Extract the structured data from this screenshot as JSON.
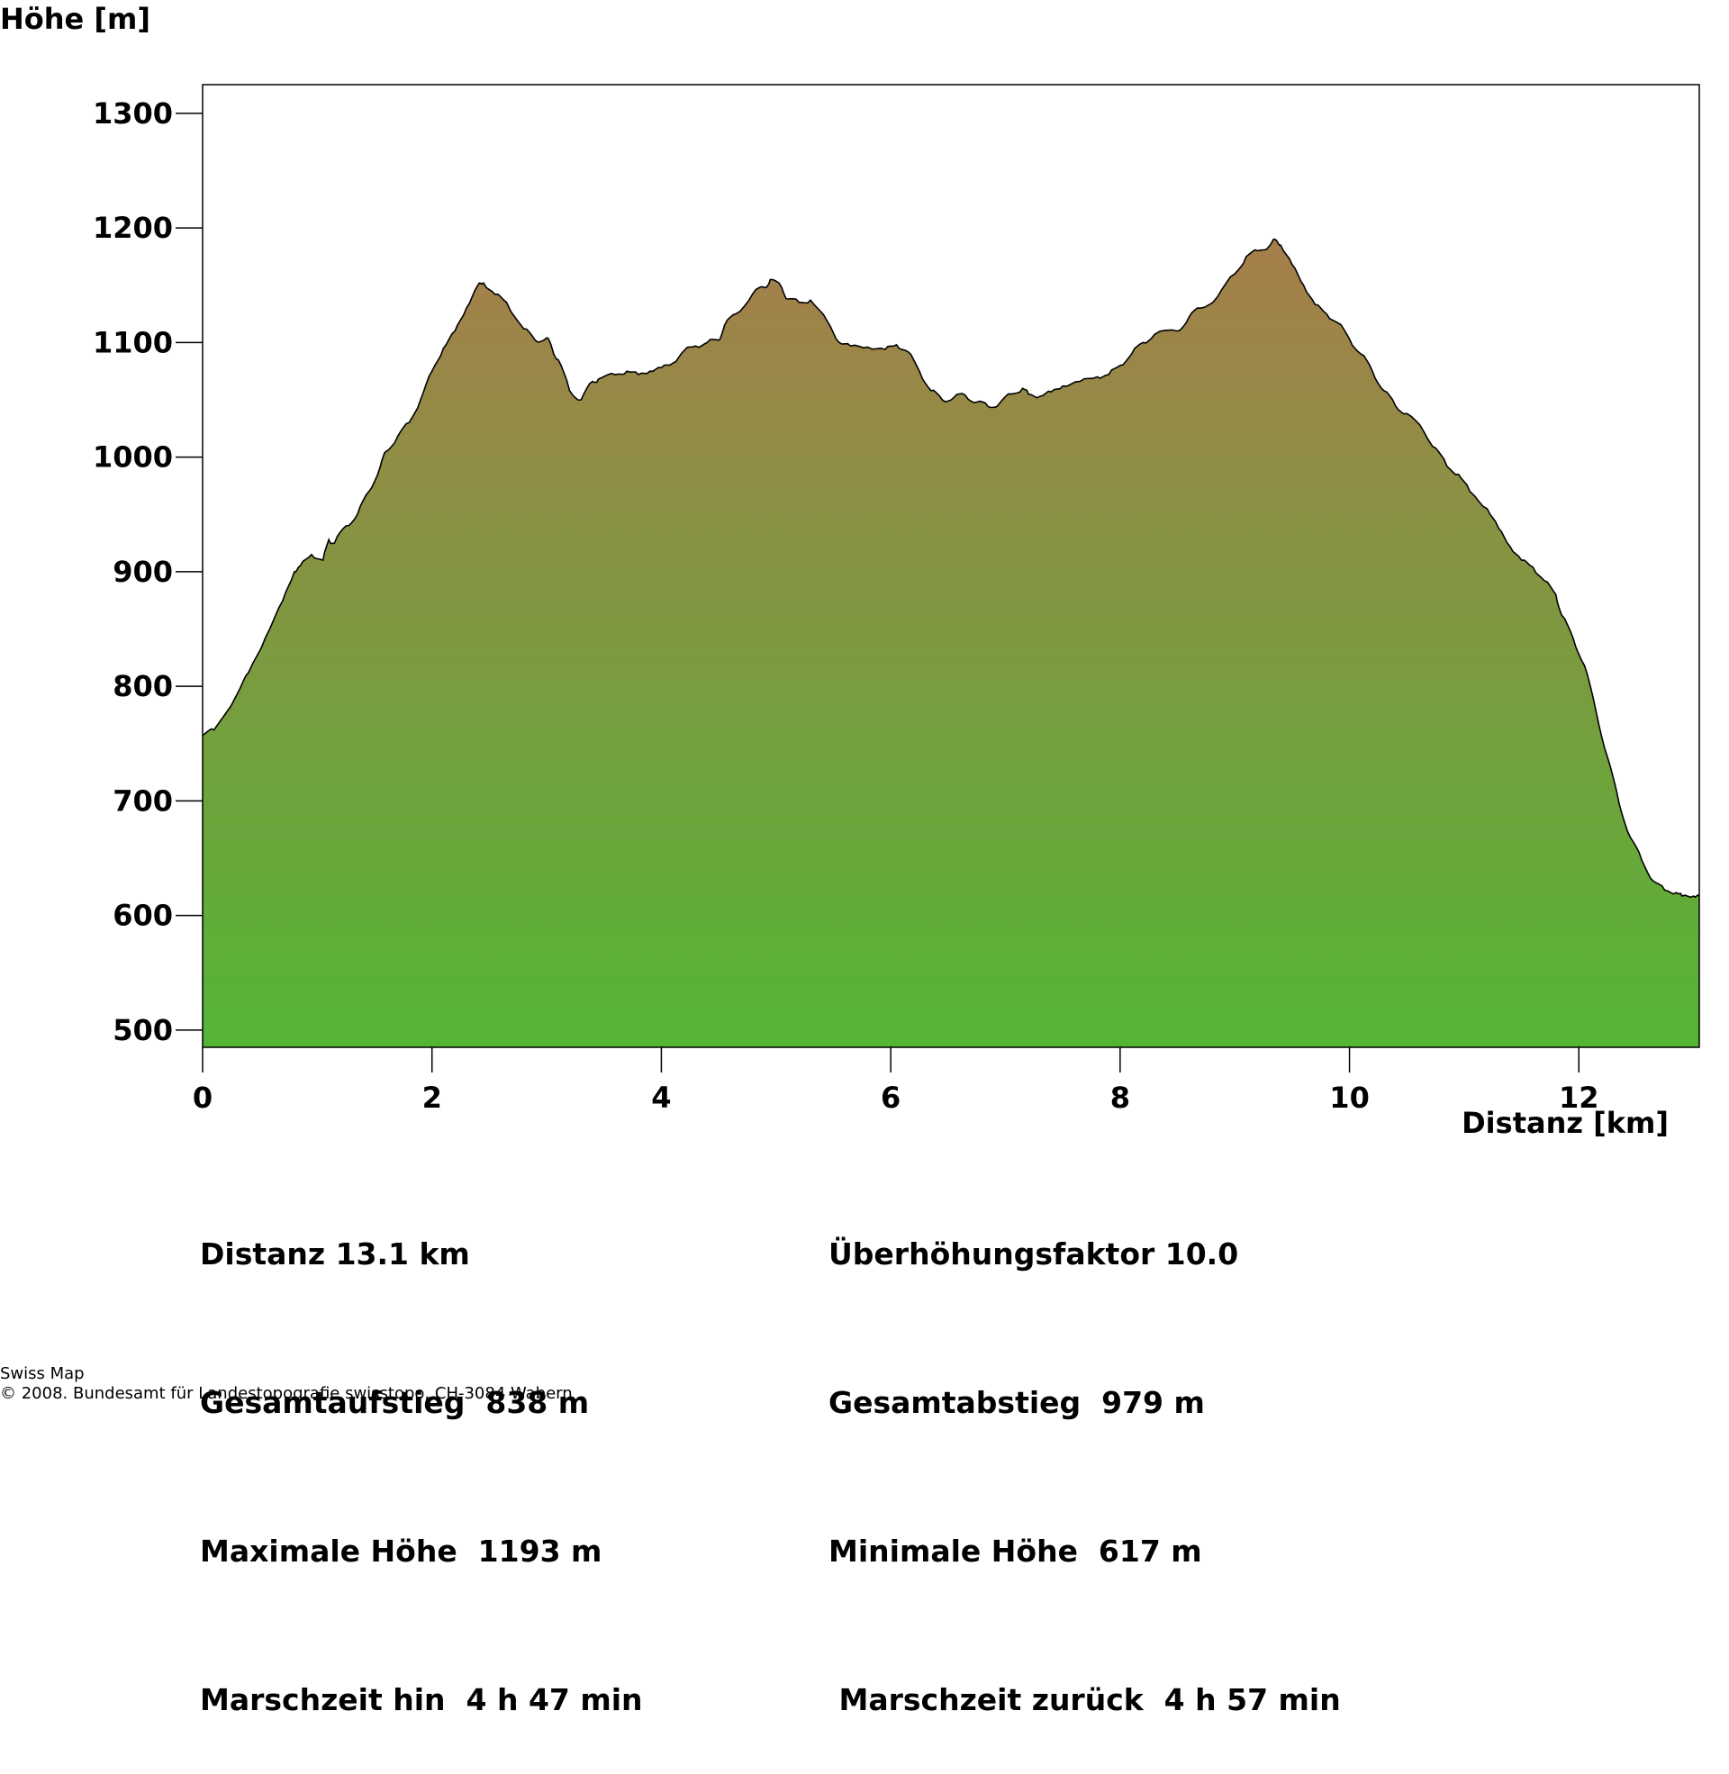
{
  "chart_data": {
    "type": "area",
    "ylabel": "Höhe [m]",
    "xlabel": "Distanz [km]",
    "xlim": [
      0,
      13.05
    ],
    "ylim": [
      485,
      1325
    ],
    "x_ticks": [
      0,
      2,
      4,
      6,
      8,
      10,
      12
    ],
    "y_ticks": [
      500,
      600,
      700,
      800,
      900,
      1000,
      1100,
      1200,
      1300
    ],
    "grid": false,
    "colors": {
      "top": "#a67e4b",
      "bottom": "#54b535",
      "line": "#000000"
    },
    "x": [
      0,
      0.1,
      0.3,
      0.4,
      0.55,
      0.7,
      0.8,
      0.85,
      0.95,
      1.05,
      1.1,
      1.15,
      1.25,
      1.35,
      1.45,
      1.55,
      1.6,
      1.7,
      1.8,
      1.9,
      2.0,
      2.1,
      2.2,
      2.3,
      2.4,
      2.45,
      2.55,
      2.65,
      2.8,
      2.9,
      3.0,
      3.05,
      3.1,
      3.2,
      3.3,
      3.4,
      3.45,
      3.6,
      3.7,
      3.8,
      3.9,
      4.0,
      4.1,
      4.2,
      4.3,
      4.4,
      4.5,
      4.55,
      4.65,
      4.8,
      4.9,
      4.95,
      5.05,
      5.1,
      5.2,
      5.3,
      5.45,
      5.55,
      5.65,
      5.8,
      5.95,
      6.05,
      6.15,
      6.25,
      6.35,
      6.45,
      6.55,
      6.65,
      6.75,
      6.85,
      6.95,
      7.05,
      7.15,
      7.2,
      7.3,
      7.4,
      7.5,
      7.65,
      7.8,
      7.9,
      8.0,
      8.1,
      8.2,
      8.3,
      8.5,
      8.6,
      8.7,
      8.85,
      9.0,
      9.1,
      9.2,
      9.3,
      9.35,
      9.4,
      9.5,
      9.6,
      9.7,
      9.8,
      9.9,
      10.0,
      10.1,
      10.2,
      10.3,
      10.4,
      10.5,
      10.65,
      10.75,
      10.85,
      10.95,
      11.05,
      11.2,
      11.3,
      11.4,
      11.5,
      11.6,
      11.7,
      11.8,
      11.85,
      11.95,
      12.05,
      12.15,
      12.25,
      12.35,
      12.45,
      12.55,
      12.65,
      12.75,
      12.85,
      12.9,
      13.0,
      13.05
    ],
    "y": [
      757,
      762,
      793,
      812,
      843,
      875,
      900,
      905,
      915,
      910,
      928,
      925,
      940,
      950,
      970,
      992,
      1005,
      1018,
      1030,
      1050,
      1075,
      1095,
      1110,
      1130,
      1150,
      1152,
      1142,
      1135,
      1112,
      1102,
      1104,
      1094,
      1085,
      1058,
      1050,
      1066,
      1068,
      1072,
      1075,
      1072,
      1075,
      1078,
      1082,
      1093,
      1097,
      1100,
      1102,
      1115,
      1125,
      1143,
      1148,
      1155,
      1148,
      1138,
      1135,
      1137,
      1118,
      1100,
      1097,
      1096,
      1094,
      1098,
      1092,
      1075,
      1058,
      1050,
      1052,
      1054,
      1048,
      1044,
      1047,
      1055,
      1060,
      1055,
      1053,
      1057,
      1062,
      1066,
      1070,
      1072,
      1080,
      1090,
      1100,
      1107,
      1110,
      1122,
      1130,
      1140,
      1160,
      1175,
      1180,
      1184,
      1190,
      1185,
      1168,
      1150,
      1133,
      1125,
      1117,
      1103,
      1090,
      1075,
      1058,
      1045,
      1038,
      1022,
      1008,
      992,
      985,
      970,
      955,
      938,
      922,
      910,
      904,
      892,
      880,
      862,
      842,
      818,
      778,
      738,
      698,
      668,
      648,
      630,
      622,
      620,
      617,
      617,
      617
    ]
  },
  "stats_left": [
    "Distanz 13.1 km",
    "Gesamtaufstieg  838 m",
    "Maximale Höhe  1193 m",
    "Marschzeit hin  4 h 47 min"
  ],
  "stats_right": [
    "Überhöhungsfaktor 10.0",
    "Gesamtabstieg  979 m",
    "Minimale Höhe  617 m",
    " Marschzeit zurück  4 h 57 min"
  ],
  "footer": {
    "line1": "Swiss Map",
    "line2": "© 2008. Bundesamt für Landestopografie swisstopo, CH-3084 Wabern"
  }
}
